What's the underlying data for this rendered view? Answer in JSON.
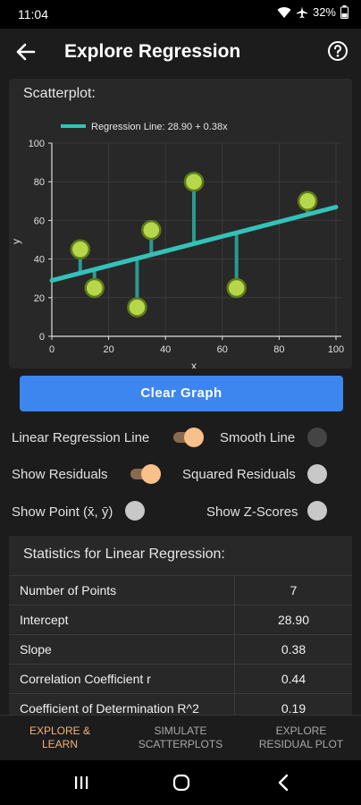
{
  "status": {
    "time": "11:04",
    "battery": "32%"
  },
  "header": {
    "title": "Explore Regression"
  },
  "plot": {
    "label": "Scatterplot:",
    "legend": "Regression Line: 28.90 + 0.38x",
    "xlabel": "x",
    "ylabel": "y"
  },
  "chart_data": {
    "type": "scatter",
    "title": "Scatterplot:",
    "xlabel": "x",
    "ylabel": "y",
    "xlim": [
      0,
      100
    ],
    "ylim": [
      0,
      100
    ],
    "xticks": [
      0,
      20,
      40,
      60,
      80,
      100
    ],
    "yticks": [
      0,
      20,
      40,
      60,
      80,
      100
    ],
    "points": [
      {
        "x": 10,
        "y": 45
      },
      {
        "x": 15,
        "y": 25
      },
      {
        "x": 30,
        "y": 15
      },
      {
        "x": 35,
        "y": 55
      },
      {
        "x": 50,
        "y": 80
      },
      {
        "x": 65,
        "y": 25
      },
      {
        "x": 90,
        "y": 70
      }
    ],
    "regression": {
      "intercept": 28.9,
      "slope": 0.38,
      "label": "Regression Line: 28.90 + 0.38x"
    },
    "show_residuals": true,
    "grid": true,
    "colors": {
      "line": "#34c2b8",
      "point": "#b6d74a",
      "residual": "#2a9a90"
    }
  },
  "buttons": {
    "clear_graph": "Clear Graph"
  },
  "options": {
    "linear_regression_line": "Linear Regression Line",
    "smooth_line": "Smooth Line",
    "show_residuals": "Show Residuals",
    "squared_residuals": "Squared Residuals",
    "show_point": "Show Point (x̄, ȳ)",
    "show_zscores": "Show Z-Scores"
  },
  "stats": {
    "title": "Statistics for Linear Regression:",
    "rows": [
      {
        "label": "Number of Points",
        "value": "7"
      },
      {
        "label": "Intercept",
        "value": "28.90"
      },
      {
        "label": "Slope",
        "value": "0.38"
      },
      {
        "label": "Correlation Coefficient r",
        "value": "0.44"
      },
      {
        "label": "Coefficient of Determination R^2",
        "value": "0.19"
      }
    ]
  },
  "tabs": [
    {
      "line1": "EXPLORE &",
      "line2": "LEARN"
    },
    {
      "line1": "SIMULATE",
      "line2": "SCATTERPLOTS"
    },
    {
      "line1": "EXPLORE",
      "line2": "RESIDUAL PLOT"
    }
  ],
  "colors": {
    "accent": "#f3b27a",
    "button": "#3d86f0",
    "line": "#34c2b8"
  }
}
